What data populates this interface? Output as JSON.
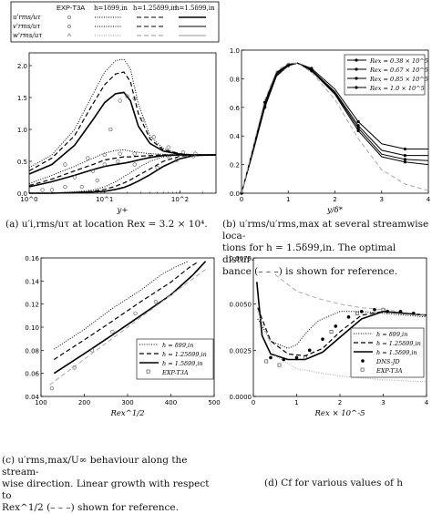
{
  "legend_top": {
    "row_labels": [
      "u'rms/uτ",
      "v'rms/uτ",
      "w'rms/uτ"
    ],
    "col_labels": [
      "EXP-T3A",
      "h=1δ99,in",
      "h=1.25δ99,in",
      "h=1.5δ99,in"
    ]
  },
  "captions": {
    "a": "(a) u′i,rms/uτ at location Rex = 3.2 × 10⁴.",
    "b1": "(b)  u′rms/u′rms,max at several streamwise loca-",
    "b2": "tions for h = 1.5δ99,in. The optimal distur-",
    "b3": "bance (– – –) is shown for reference.",
    "c1": "(c)  u′rms,max/U∞ behaviour along the stream-",
    "c2": "wise direction. Linear growth with respect to",
    "c3": "Rex^1/2 (– – –) shown for reference.",
    "d": "(d) Cf for various values of h"
  },
  "chart_data": [
    {
      "type": "line",
      "panel": "a",
      "xlabel": "y+",
      "xscale": "log",
      "xlim": [
        1,
        300
      ],
      "ylim": [
        0,
        2.2
      ],
      "yticks": [
        "0.0",
        "0.5",
        "1.0",
        "1.5",
        "2.0"
      ],
      "xticks": [
        "10^0",
        "10^1",
        "10^2"
      ],
      "x": [
        1,
        2,
        4,
        7,
        10,
        14,
        18,
        22,
        28,
        40,
        60,
        100,
        150,
        300
      ],
      "series": [
        {
          "name": "h=1δ99,in u'",
          "style": "dotted",
          "values": [
            0.4,
            0.6,
            1.0,
            1.55,
            1.9,
            2.08,
            2.1,
            1.95,
            1.4,
            0.9,
            0.7,
            0.62,
            0.6,
            0.6
          ]
        },
        {
          "name": "h=1.25δ99,in u'",
          "style": "dashed",
          "values": [
            0.35,
            0.55,
            0.9,
            1.4,
            1.7,
            1.87,
            1.9,
            1.75,
            1.25,
            0.85,
            0.68,
            0.62,
            0.6,
            0.6
          ]
        },
        {
          "name": "h=1.5δ99,in u'",
          "style": "solid",
          "values": [
            0.3,
            0.45,
            0.75,
            1.15,
            1.42,
            1.56,
            1.58,
            1.45,
            1.05,
            0.78,
            0.66,
            0.61,
            0.6,
            0.6
          ]
        },
        {
          "name": "h=1δ99,in v'",
          "style": "dotted",
          "values": [
            0.0,
            0.0,
            0.02,
            0.05,
            0.1,
            0.18,
            0.26,
            0.32,
            0.4,
            0.5,
            0.57,
            0.6,
            0.6,
            0.6
          ]
        },
        {
          "name": "h=1.25δ99,in v'",
          "style": "dashed",
          "values": [
            0.0,
            0.0,
            0.01,
            0.03,
            0.06,
            0.11,
            0.16,
            0.21,
            0.28,
            0.38,
            0.5,
            0.58,
            0.6,
            0.6
          ]
        },
        {
          "name": "h=1.5δ99,in v'",
          "style": "solid",
          "values": [
            0.0,
            0.0,
            0.01,
            0.02,
            0.03,
            0.06,
            0.09,
            0.13,
            0.19,
            0.29,
            0.42,
            0.54,
            0.59,
            0.6
          ]
        },
        {
          "name": "h=1δ99,in w'",
          "style": "dotted",
          "values": [
            0.15,
            0.28,
            0.42,
            0.55,
            0.63,
            0.67,
            0.68,
            0.66,
            0.64,
            0.62,
            0.61,
            0.6,
            0.6,
            0.6
          ]
        },
        {
          "name": "h=1.25δ99,in w'",
          "style": "dashed",
          "values": [
            0.12,
            0.22,
            0.35,
            0.45,
            0.52,
            0.55,
            0.57,
            0.57,
            0.58,
            0.59,
            0.6,
            0.6,
            0.6,
            0.6
          ]
        },
        {
          "name": "h=1.5δ99,in w'",
          "style": "solid",
          "values": [
            0.1,
            0.18,
            0.28,
            0.37,
            0.42,
            0.45,
            0.47,
            0.49,
            0.52,
            0.56,
            0.59,
            0.6,
            0.6,
            0.6
          ]
        }
      ],
      "markers": [
        {
          "name": "EXP-T3A u'",
          "x": [
            1.5,
            3,
            5,
            8,
            12,
            16,
            20,
            25,
            32,
            45,
            70,
            110,
            160
          ],
          "values": [
            0.05,
            0.1,
            0.1,
            0.2,
            1.0,
            1.45,
            1.52,
            1.48,
            1.15,
            0.88,
            0.72,
            0.64,
            0.62
          ]
        },
        {
          "name": "EXP-T3A v'",
          "x": [
            2,
            4,
            7,
            10,
            15,
            25,
            50,
            90,
            150
          ],
          "values": [
            0.05,
            0.25,
            0.35,
            0.45,
            0.5,
            0.45,
            0.4,
            0.52,
            0.58
          ]
        },
        {
          "name": "EXP-T3A w'",
          "x": [
            3,
            6,
            10,
            16,
            25,
            40,
            70
          ],
          "values": [
            0.45,
            0.55,
            0.6,
            0.62,
            0.62,
            0.6,
            0.58
          ]
        }
      ]
    },
    {
      "type": "line",
      "panel": "b",
      "xlabel": "y/δ*",
      "xlim": [
        0,
        4
      ],
      "ylim": [
        0,
        1.1
      ],
      "xticks": [
        "0",
        "1",
        "2",
        "3",
        "4"
      ],
      "yticks": [
        "0.0",
        "0.2",
        "0.4",
        "0.6",
        "0.8",
        "1.0"
      ],
      "x": [
        0,
        0.25,
        0.5,
        0.75,
        1.0,
        1.2,
        1.5,
        2.0,
        2.5,
        3.0,
        3.5,
        4.0
      ],
      "series": [
        {
          "name": "Rex = 0.38 × 10^5",
          "style": "solid-marker",
          "values": [
            0.0,
            0.35,
            0.7,
            0.93,
            0.99,
            1.0,
            0.96,
            0.8,
            0.55,
            0.38,
            0.34,
            0.34
          ]
        },
        {
          "name": "Rex = 0.67 × 10^5",
          "style": "solid-marker",
          "values": [
            0.0,
            0.34,
            0.68,
            0.92,
            0.99,
            1.0,
            0.95,
            0.78,
            0.52,
            0.33,
            0.29,
            0.29
          ]
        },
        {
          "name": "Rex = 0.85 × 10^5",
          "style": "solid-marker",
          "values": [
            0.0,
            0.33,
            0.67,
            0.91,
            0.99,
            1.0,
            0.95,
            0.77,
            0.5,
            0.3,
            0.26,
            0.25
          ]
        },
        {
          "name": "Rex = 1.0 × 10^5",
          "style": "solid-marker",
          "values": [
            0.0,
            0.32,
            0.66,
            0.9,
            0.98,
            1.0,
            0.94,
            0.76,
            0.48,
            0.28,
            0.24,
            0.22
          ]
        },
        {
          "name": "",
          "style": "dashed-gray",
          "values": [
            0.0,
            0.36,
            0.72,
            0.94,
            1.0,
            1.0,
            0.93,
            0.72,
            0.42,
            0.18,
            0.07,
            0.02
          ]
        }
      ]
    },
    {
      "type": "line",
      "panel": "c",
      "xlabel": "Rex^1/2",
      "xlim": [
        100,
        500
      ],
      "ylim": [
        0.04,
        0.16
      ],
      "xticks": [
        "100",
        "200",
        "300",
        "400",
        "500"
      ],
      "yticks": [
        "0.04",
        "0.06",
        "0.08",
        "0.10",
        "0.12",
        "0.14",
        "0.16"
      ],
      "series": [
        {
          "name": "h = δ99,in",
          "style": "dotted",
          "x": [
            130,
            200,
            260,
            330,
            380,
            410,
            440
          ],
          "values": [
            0.081,
            0.098,
            0.115,
            0.132,
            0.146,
            0.152,
            0.157
          ]
        },
        {
          "name": "h = 1.25δ99,in",
          "style": "dashed",
          "x": [
            130,
            200,
            260,
            330,
            400,
            440,
            460
          ],
          "values": [
            0.072,
            0.089,
            0.104,
            0.122,
            0.139,
            0.151,
            0.156
          ]
        },
        {
          "name": "h = 1.5δ99,in",
          "style": "solid",
          "x": [
            130,
            200,
            260,
            330,
            400,
            450,
            480
          ],
          "values": [
            0.06,
            0.077,
            0.092,
            0.11,
            0.128,
            0.145,
            0.157
          ]
        },
        {
          "name": "",
          "style": "dashed-gray",
          "x": [
            120,
            480
          ],
          "values": [
            0.05,
            0.15
          ]
        }
      ],
      "markers": [
        {
          "name": "EXP-T3A",
          "x": [
            125,
            177,
            218,
            265,
            318,
            365
          ],
          "values": [
            0.047,
            0.065,
            0.08,
            0.096,
            0.112,
            0.122
          ]
        }
      ]
    },
    {
      "type": "line",
      "panel": "d",
      "xlabel": "Rex × 10^-5",
      "xlim": [
        0,
        4
      ],
      "ylim": [
        0,
        0.0075
      ],
      "xticks": [
        "0",
        "1",
        "2",
        "3",
        "4"
      ],
      "yticks": [
        "0.0000",
        "0.0025",
        "0.0050",
        "0.0075"
      ],
      "series": [
        {
          "name": "h = δ99,in",
          "style": "dotted",
          "x": [
            0.1,
            0.4,
            0.8,
            1.0,
            1.2,
            1.5,
            2.0,
            2.5,
            3.0,
            4.0
          ],
          "values": [
            0.0042,
            0.003,
            0.0026,
            0.0028,
            0.0034,
            0.0041,
            0.0046,
            0.0046,
            0.0045,
            0.0043
          ]
        },
        {
          "name": "h = 1.25δ99,in",
          "style": "dashed",
          "x": [
            0.1,
            0.4,
            0.8,
            1.2,
            1.6,
            2.0,
            2.5,
            3.0,
            4.0
          ],
          "values": [
            0.0048,
            0.003,
            0.0023,
            0.0022,
            0.0026,
            0.0035,
            0.0044,
            0.0046,
            0.0044
          ]
        },
        {
          "name": "h = 1.5δ99,in",
          "style": "solid",
          "x": [
            0.08,
            0.2,
            0.4,
            0.8,
            1.2,
            1.6,
            2.0,
            2.5,
            3.0,
            4.0
          ],
          "values": [
            0.0062,
            0.0033,
            0.0023,
            0.002,
            0.002,
            0.0024,
            0.0032,
            0.0042,
            0.0046,
            0.0044
          ]
        },
        {
          "name": "",
          "style": "dashed-gray",
          "x": [
            0.5,
            1.0,
            1.5,
            2.0,
            2.5,
            3.0,
            4.0
          ],
          "values": [
            0.0066,
            0.0057,
            0.0053,
            0.005,
            0.0048,
            0.0047,
            0.0044
          ]
        },
        {
          "name": "",
          "style": "dotted-gray",
          "x": [
            0.1,
            0.5,
            1.0,
            1.5,
            2.0,
            2.5,
            3.0,
            4.0
          ],
          "values": [
            0.0046,
            0.0022,
            0.0015,
            0.0013,
            0.0011,
            0.001,
            0.0009,
            0.0008
          ]
        }
      ],
      "markers": [
        {
          "name": "DNS-JD",
          "marker": "filled",
          "x": [
            0.4,
            0.7,
            1.0,
            1.3,
            1.6,
            1.9,
            2.2,
            2.5,
            2.8,
            3.1,
            3.4,
            3.7
          ],
          "values": [
            0.0021,
            0.002,
            0.0021,
            0.0025,
            0.0031,
            0.0038,
            0.0043,
            0.0046,
            0.0047,
            0.0046,
            0.0046,
            0.0045
          ]
        },
        {
          "name": "EXP-T3A",
          "marker": "square",
          "x": [
            0.3,
            0.6,
            1.2,
            1.8,
            2.4,
            3.0
          ],
          "values": [
            0.0019,
            0.0017,
            0.0021,
            0.0035,
            0.0045,
            0.0047
          ]
        }
      ]
    }
  ]
}
